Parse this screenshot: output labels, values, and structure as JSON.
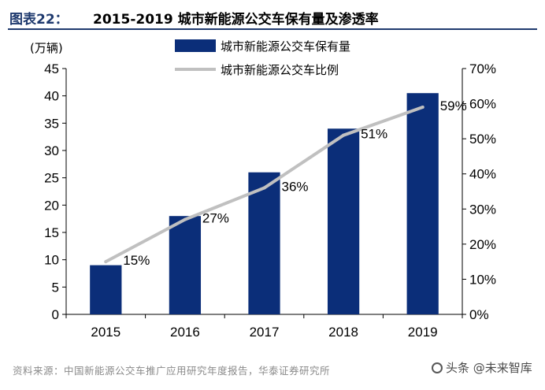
{
  "header": {
    "figure_label": "图表22：",
    "title": "2015-2019 城市新能源公交车保有量及渗透率"
  },
  "chart_data": {
    "type": "bar",
    "categories": [
      "2015",
      "2016",
      "2017",
      "2018",
      "2019"
    ],
    "series": [
      {
        "name": "城市新能源公交车保有量",
        "type": "bar",
        "axis": "left",
        "values": [
          9,
          18,
          26,
          34,
          40.5
        ],
        "color": "#0b2e79"
      },
      {
        "name": "城市新能源公交车比例",
        "type": "line",
        "axis": "right",
        "values": [
          0.15,
          0.27,
          0.36,
          0.51,
          0.59
        ],
        "labels": [
          "15%",
          "27%",
          "36%",
          "51%",
          "59%"
        ],
        "color": "#c0c0c0"
      }
    ],
    "ylabel": "(万辆)",
    "ylim": [
      0,
      45
    ],
    "yticks": [
      "0",
      "5",
      "10",
      "15",
      "20",
      "25",
      "30",
      "35",
      "40",
      "45"
    ],
    "y2lim": [
      0,
      0.7
    ],
    "y2ticks": [
      "0%",
      "10%",
      "20%",
      "30%",
      "40%",
      "50%",
      "60%",
      "70%"
    ],
    "grid": false,
    "legend_position": "top"
  },
  "footer": {
    "source": "资料来源：中国新能源公交车推广应用研究年度报告，华泰证券研究所",
    "watermark": "头条 @未来智库"
  }
}
